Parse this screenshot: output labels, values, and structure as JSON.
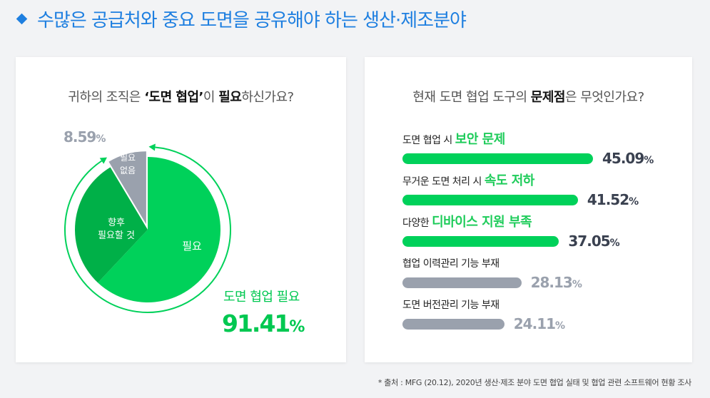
{
  "headline": "수많은 공급처와 중요 도면을 공유해야 하는 생산·제조분야",
  "colors": {
    "accent_blue": "#1e7fe0",
    "green": "#00d15a",
    "dark_green": "#00b048",
    "grey": "#9aa1ad",
    "bar_green": "#00d15a",
    "bar_grey": "#9aa1ad"
  },
  "left": {
    "question_pre": "귀하의 조직은 ",
    "question_bold1": "‘도면 협업’",
    "question_mid": "이 ",
    "question_bold2": "필요",
    "question_post": "하신가요?",
    "label_need": "필요",
    "label_future_1": "향후",
    "label_future_2": "필요할 것",
    "label_none_1": "필요",
    "label_none_2": "없음",
    "none_pct": "8.59",
    "none_pct_unit": "%",
    "big_label": "도면 협업 필요",
    "big_value": "91.41",
    "big_unit": "%"
  },
  "right": {
    "question_pre": "현재 도면 협업 도구의 ",
    "question_bold": "문제점",
    "question_post": "은 무엇인가요?"
  },
  "chart_data": [
    {
      "type": "pie",
      "title": "귀하의 조직은 ‘도면 협업’이 필요하신가요?",
      "slices": [
        {
          "name": "필요",
          "value": 62.0,
          "color": "#00d15a"
        },
        {
          "name": "향후 필요할 것",
          "value": 29.41,
          "color": "#00b048"
        },
        {
          "name": "필요 없음",
          "value": 8.59,
          "color": "#9aa1ad"
        }
      ],
      "annotations": [
        "8.59%",
        "도면 협업 필요 91.41%"
      ]
    },
    {
      "type": "bar",
      "orientation": "horizontal",
      "title": "현재 도면 협업 도구의 문제점은 무엇인가요?",
      "categories": [
        {
          "prefix": "도면 협업 시 ",
          "highlight": "보안 문제",
          "plain": ""
        },
        {
          "prefix": "무거운 도면 처리 시 ",
          "highlight": "속도 저하",
          "plain": ""
        },
        {
          "prefix": "다양한 ",
          "highlight": "디바이스 지원 부족",
          "plain": ""
        },
        {
          "prefix": "",
          "highlight": "",
          "plain": "협업 이력관리 기능 부재"
        },
        {
          "prefix": "",
          "highlight": "",
          "plain": "도면 버전관리 기능 부재"
        }
      ],
      "values": [
        45.09,
        41.52,
        37.05,
        28.13,
        24.11
      ],
      "value_labels": [
        "45.09",
        "41.52",
        "37.05",
        "28.13",
        "24.11"
      ],
      "unit": "%",
      "highlighted": [
        true,
        true,
        true,
        false,
        false
      ]
    }
  ],
  "footnote": "* 출처 : MFG (20.12), 2020년 생산·제조 분야 도면 협업 실태 및 협업 관련 소프트웨어 현황 조사"
}
